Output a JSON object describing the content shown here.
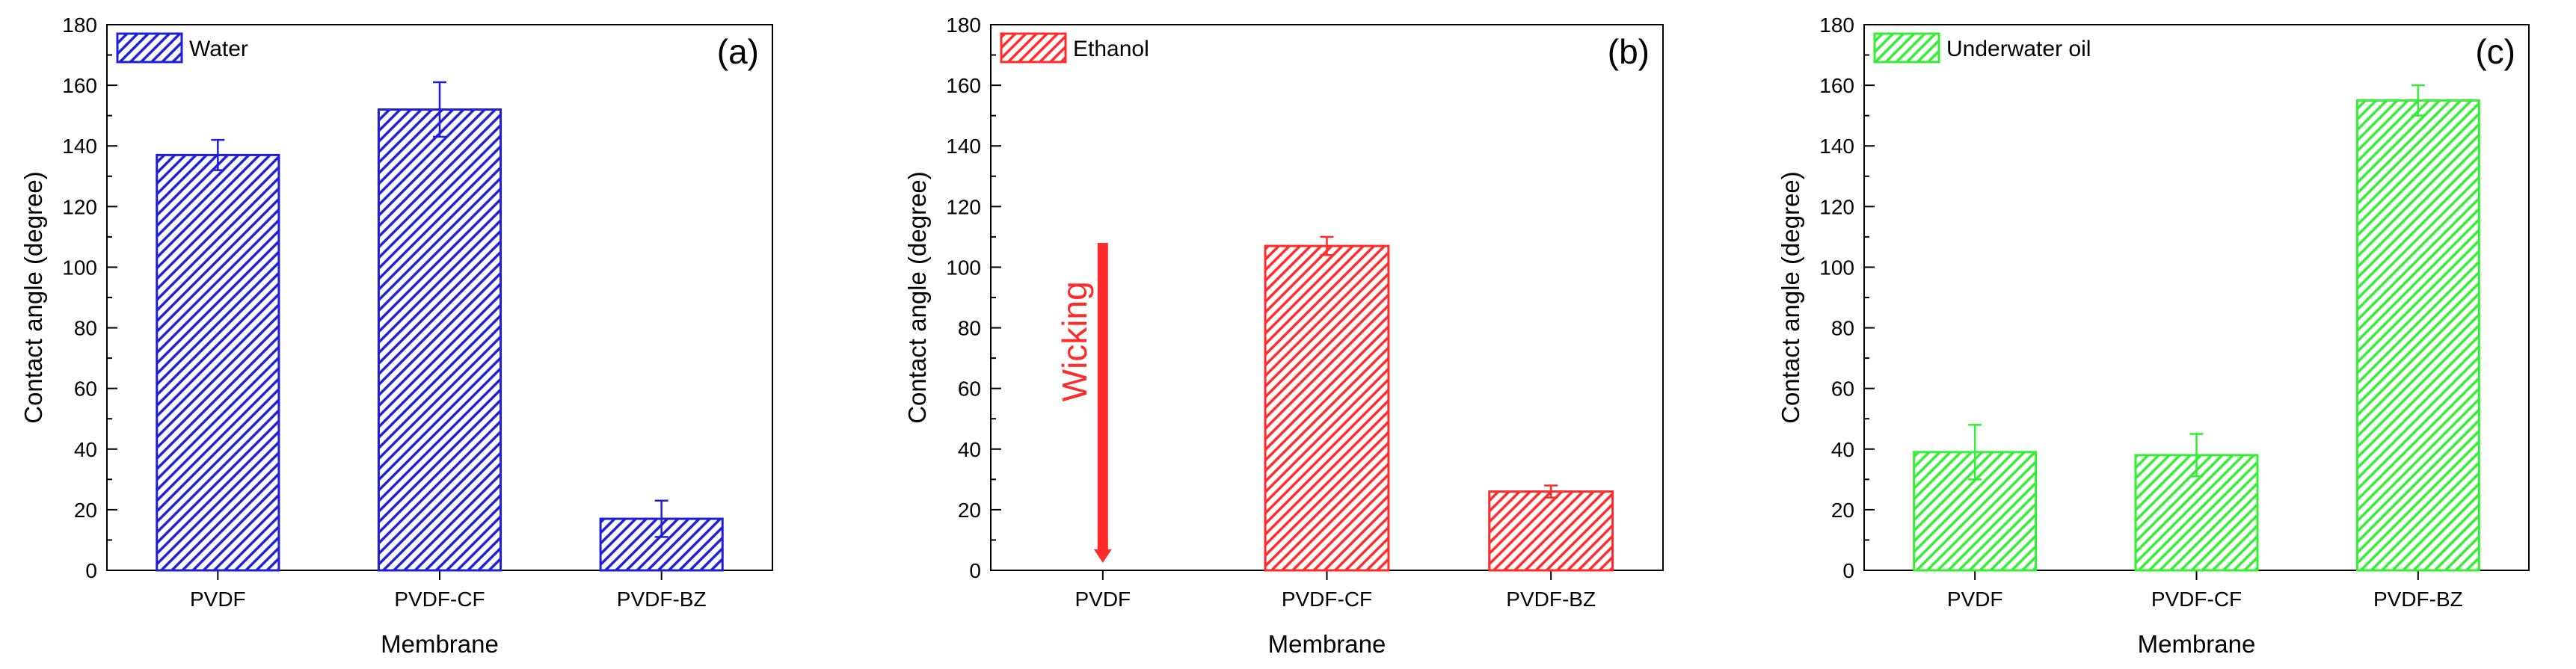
{
  "chart_data": [
    {
      "type": "bar",
      "panel_label": "(a)",
      "legend": "Water",
      "color": "#1f1fd6",
      "categories": [
        "PVDF",
        "PVDF-CF",
        "PVDF-BZ"
      ],
      "values": [
        137,
        152,
        17
      ],
      "errors": [
        5,
        9,
        6
      ],
      "xlabel": "Membrane",
      "ylabel": "Contact angle (degree)",
      "ylim": [
        0,
        180
      ],
      "yticks": [
        "0",
        "20",
        "40",
        "60",
        "80",
        "100",
        "120",
        "140",
        "160",
        "180"
      ],
      "legend_position": "top-left"
    },
    {
      "type": "bar",
      "panel_label": "(b)",
      "legend": "Ethanol",
      "color": "#ff2a2a",
      "categories": [
        "PVDF",
        "PVDF-CF",
        "PVDF-BZ"
      ],
      "values": [
        null,
        107,
        26
      ],
      "errors": [
        null,
        3,
        2
      ],
      "annotation": {
        "text": "Wicking",
        "category": "PVDF",
        "arrow_from": 108,
        "arrow_to": 3
      },
      "xlabel": "Membrane",
      "ylabel": "Contact angle (degree)",
      "ylim": [
        0,
        180
      ],
      "yticks": [
        "0",
        "20",
        "40",
        "60",
        "80",
        "100",
        "120",
        "140",
        "160",
        "180"
      ],
      "legend_position": "top-left"
    },
    {
      "type": "bar",
      "panel_label": "(c)",
      "legend": "Underwater oil",
      "color": "#33ee33",
      "categories": [
        "PVDF",
        "PVDF-CF",
        "PVDF-BZ"
      ],
      "values": [
        39,
        38,
        155
      ],
      "errors": [
        9,
        7,
        5
      ],
      "xlabel": "Membrane",
      "ylabel": "Contact angle (degree)",
      "ylim": [
        0,
        180
      ],
      "yticks": [
        "0",
        "20",
        "40",
        "60",
        "80",
        "100",
        "120",
        "140",
        "160",
        "180"
      ],
      "legend_position": "top-left"
    }
  ]
}
